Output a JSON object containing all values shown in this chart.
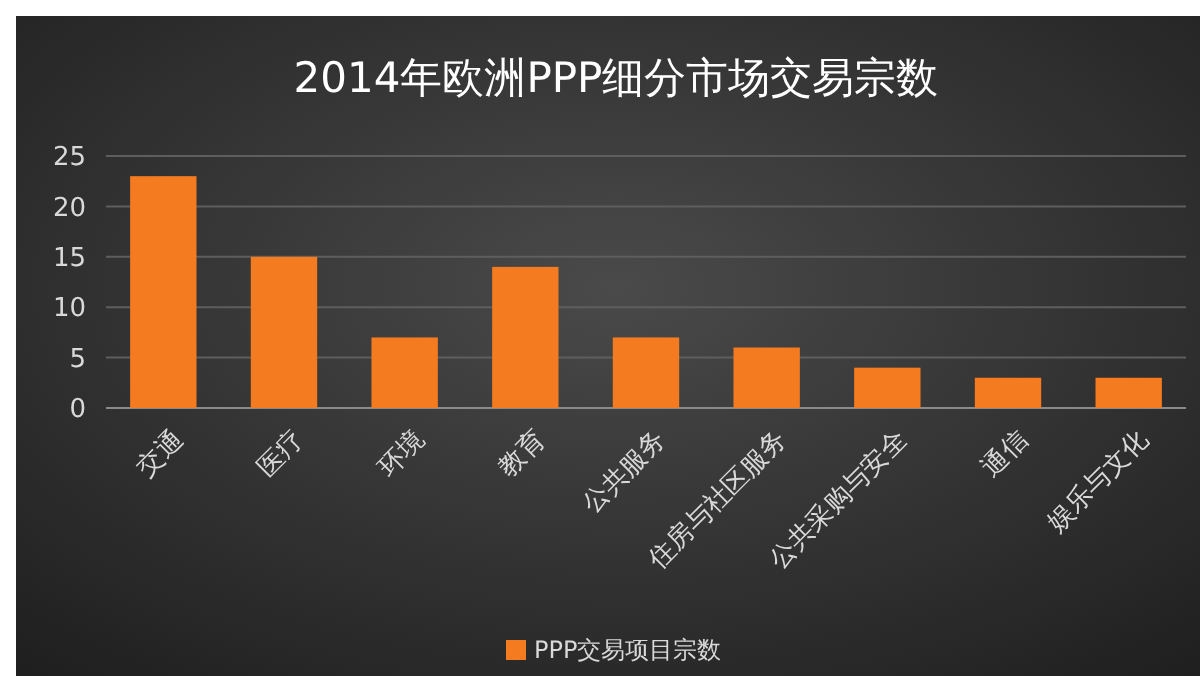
{
  "chart_data": {
    "type": "bar",
    "title": "2014年欧洲PPP细分市场交易宗数",
    "categories": [
      "交通",
      "医疗",
      "环境",
      "教育",
      "公共服务",
      "住房与社区服务",
      "公共采购与安全",
      "通信",
      "娱乐与文化"
    ],
    "series": [
      {
        "name": "PPP交易项目宗数",
        "color": "#f47b20",
        "values": [
          23,
          15,
          7,
          14,
          7,
          6,
          4,
          3,
          3
        ]
      }
    ],
    "ylim": [
      0,
      25
    ],
    "yticks": [
      0,
      5,
      10,
      15,
      20,
      25
    ],
    "grid": "y",
    "legend": "bottom"
  }
}
